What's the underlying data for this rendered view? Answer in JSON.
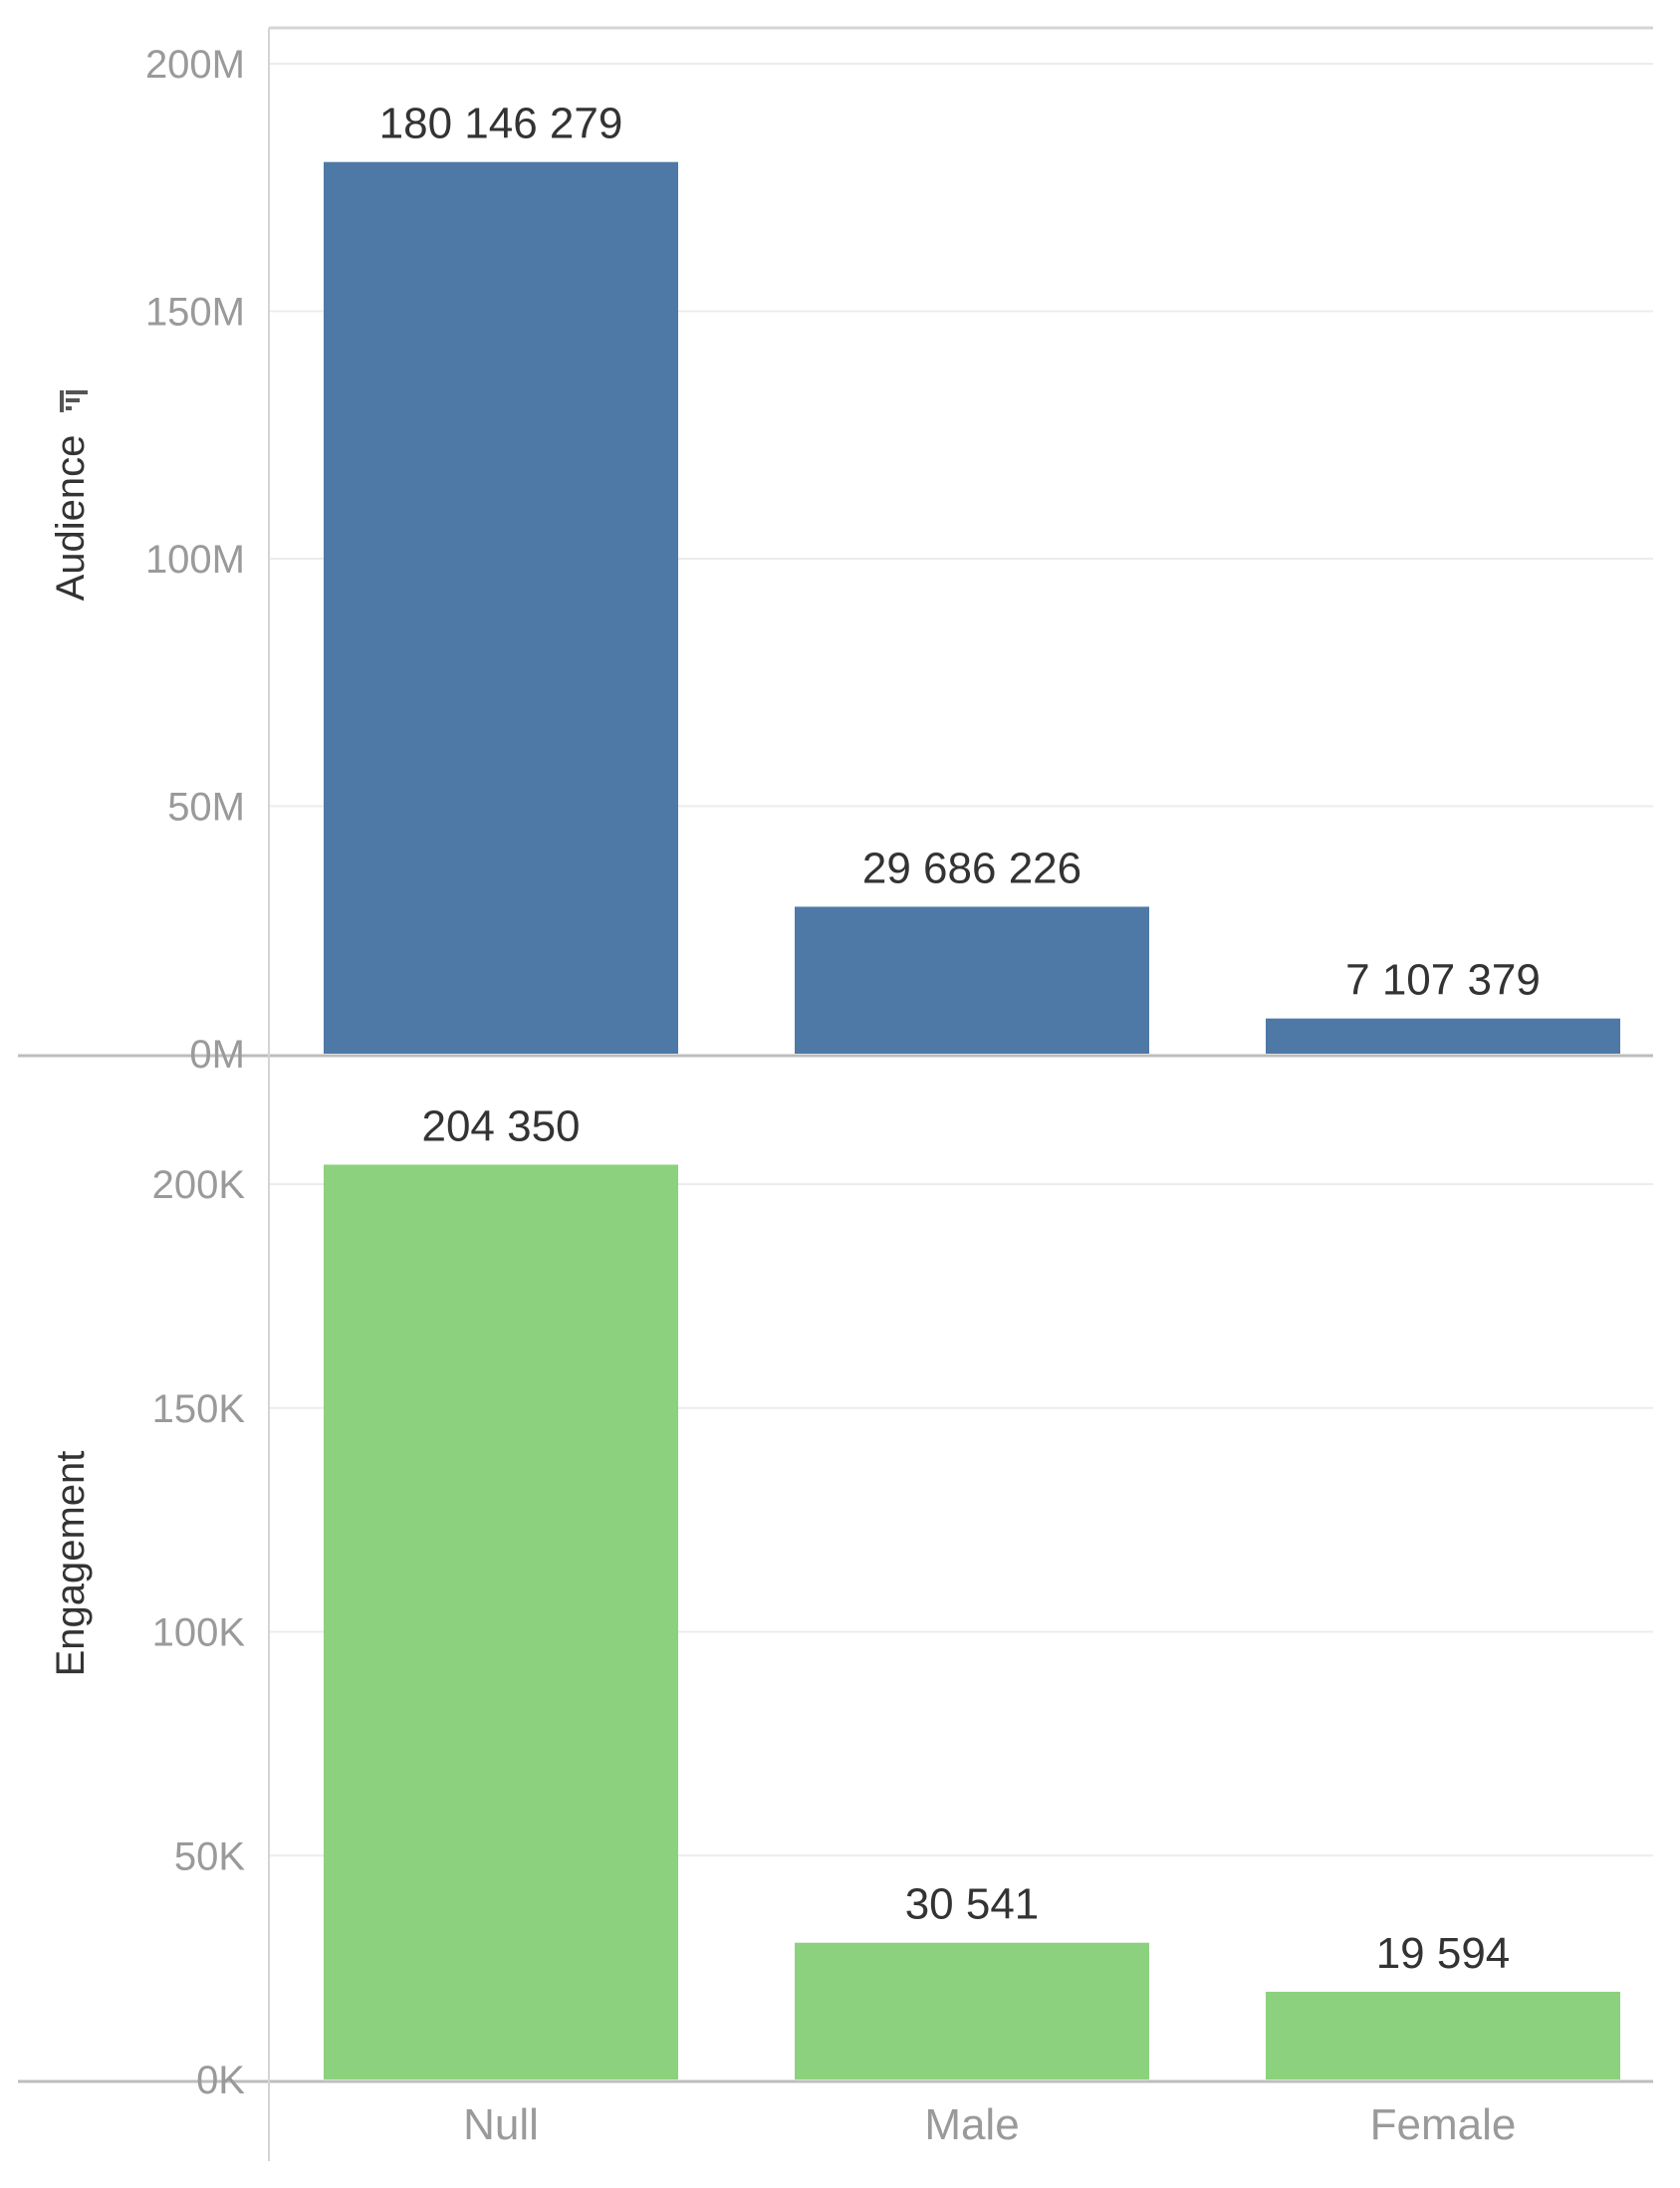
{
  "chart_data": {
    "type": "bar",
    "categories": [
      "Null",
      "Male",
      "Female"
    ],
    "panels": [
      {
        "name": "Audience",
        "ylabel": "Audience",
        "ylabel_icon": "sort-descending-icon",
        "values": [
          180146279,
          29686226,
          7107379
        ],
        "value_labels": [
          "180 146 279",
          "29 686 226",
          "7 107 379"
        ],
        "ylim": [
          0,
          200000000
        ],
        "ticks": [
          0,
          50000000,
          100000000,
          150000000,
          200000000
        ],
        "tick_labels": [
          "0M",
          "50M",
          "100M",
          "150M",
          "200M"
        ],
        "color": "#4e79a7"
      },
      {
        "name": "Engagement",
        "ylabel": "Engagement",
        "values": [
          204350,
          30541,
          19594
        ],
        "value_labels": [
          "204 350",
          "30 541",
          "19 594"
        ],
        "ylim": [
          0,
          200000
        ],
        "ticks": [
          0,
          50000,
          100000,
          150000,
          200000
        ],
        "tick_labels": [
          "0K",
          "50K",
          "100K",
          "150K",
          "200K"
        ],
        "color": "#8cd17d"
      }
    ],
    "grid": true,
    "legend": "none"
  }
}
